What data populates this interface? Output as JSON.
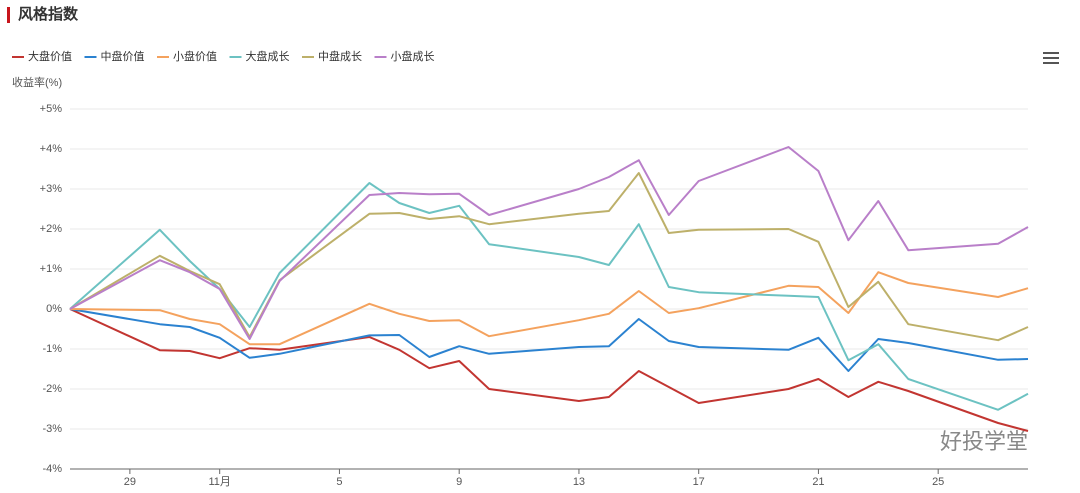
{
  "chart_data": {
    "type": "line",
    "title": "风格指数",
    "y_label": "收益率(%)",
    "watermark": "好投学堂",
    "x": [
      27,
      30,
      31,
      32,
      33,
      34,
      37,
      38,
      39,
      40,
      41,
      44,
      45,
      46,
      47,
      48,
      51,
      52,
      53,
      54,
      55,
      58,
      59
    ],
    "xlim": [
      27,
      59
    ],
    "xticks": [
      29,
      {
        "value": 32,
        "label": "11月"
      },
      {
        "value": 36,
        "label": "5"
      },
      {
        "value": 40,
        "label": "9"
      },
      {
        "value": 44,
        "label": "13"
      },
      {
        "value": 48,
        "label": "17"
      },
      {
        "value": 52,
        "label": "21"
      },
      {
        "value": 56,
        "label": "25"
      }
    ],
    "ylim": [
      -4,
      5
    ],
    "yticks": [
      {
        "value": -4,
        "label": "-4%"
      },
      {
        "value": -3,
        "label": "-3%"
      },
      {
        "value": -2,
        "label": "-2%"
      },
      {
        "value": -1,
        "label": "-1%"
      },
      {
        "value": 0,
        "label": "0%"
      },
      {
        "value": 1,
        "label": "+1%"
      },
      {
        "value": 2,
        "label": "+2%"
      },
      {
        "value": 3,
        "label": "+3%"
      },
      {
        "value": 4,
        "label": "+4%"
      },
      {
        "value": 5,
        "label": "+5%"
      }
    ],
    "grid": true,
    "series": [
      {
        "name": "大盘价值",
        "color": "#c23531",
        "values": [
          0,
          -1.03,
          -1.05,
          -1.23,
          -0.98,
          -1.02,
          -0.7,
          -1.02,
          -1.48,
          -1.3,
          -2.0,
          -2.3,
          -2.2,
          -1.55,
          -1.95,
          -2.35,
          -2.0,
          -1.75,
          -2.2,
          -1.82,
          -2.05,
          -2.85,
          -3.05
        ]
      },
      {
        "name": "中盘价值",
        "color": "#2b82d0",
        "values": [
          0,
          -0.38,
          -0.45,
          -0.72,
          -1.22,
          -1.12,
          -0.66,
          -0.65,
          -1.2,
          -0.93,
          -1.12,
          -0.95,
          -0.93,
          -0.25,
          -0.8,
          -0.95,
          -1.02,
          -0.72,
          -1.55,
          -0.75,
          -0.85,
          -1.27,
          -1.25
        ]
      },
      {
        "name": "小盘价值",
        "color": "#f4a25e",
        "values": [
          0,
          -0.03,
          -0.25,
          -0.38,
          -0.88,
          -0.88,
          0.13,
          -0.12,
          -0.3,
          -0.28,
          -0.68,
          -0.28,
          -0.12,
          0.45,
          -0.1,
          0.02,
          0.58,
          0.55,
          -0.1,
          0.92,
          0.65,
          0.3,
          0.52
        ]
      },
      {
        "name": "大盘成长",
        "color": "#6cc2c2",
        "values": [
          0,
          1.98,
          1.2,
          0.5,
          -0.45,
          0.9,
          3.15,
          2.65,
          2.4,
          2.58,
          1.62,
          1.3,
          1.1,
          2.12,
          0.55,
          0.42,
          0.33,
          0.3,
          -1.28,
          -0.88,
          -1.75,
          -2.52,
          -2.12
        ]
      },
      {
        "name": "中盘成长",
        "color": "#bdb06a",
        "values": [
          0,
          1.33,
          0.95,
          0.62,
          -0.7,
          0.72,
          2.38,
          2.4,
          2.25,
          2.32,
          2.12,
          2.38,
          2.45,
          3.4,
          1.9,
          1.98,
          2.0,
          1.68,
          0.05,
          0.68,
          -0.38,
          -0.78,
          -0.45
        ]
      },
      {
        "name": "小盘成长",
        "color": "#b97fc9",
        "values": [
          0,
          1.22,
          0.92,
          0.5,
          -0.75,
          0.7,
          2.85,
          2.9,
          2.87,
          2.88,
          2.35,
          3.0,
          3.3,
          3.72,
          2.35,
          3.2,
          4.05,
          3.45,
          1.72,
          2.7,
          1.47,
          1.63,
          2.05
        ]
      }
    ]
  }
}
